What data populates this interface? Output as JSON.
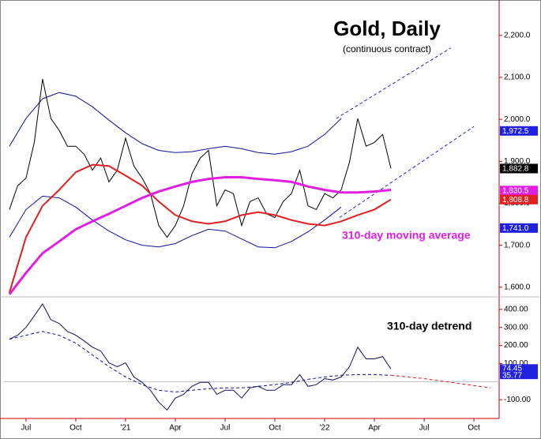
{
  "chart_data": [
    {
      "type": "line",
      "title": "Gold, Daily",
      "subtitle": "(continuous contract)",
      "annotations": [
        {
          "text": "310-day moving average",
          "color": "#e020e0"
        }
      ],
      "x": [
        -1,
        0,
        1,
        2,
        3,
        4,
        5,
        6,
        7,
        8,
        9,
        10,
        11,
        12,
        13,
        14,
        15,
        16,
        17,
        18,
        19,
        20,
        21,
        22
      ],
      "xlim": [
        -1.33,
        28.52
      ],
      "ylim": [
        1577,
        2275
      ],
      "yticks": [
        {
          "value": 1600,
          "label": "1,600.0"
        },
        {
          "value": 1700,
          "label": "1,700.0"
        },
        {
          "value": 1800,
          "label": "1,800.0"
        },
        {
          "value": 1900,
          "label": "1,900.0"
        },
        {
          "value": 2000,
          "label": "2,000.0"
        },
        {
          "value": 2100,
          "label": "2,100.0"
        },
        {
          "value": 2200,
          "label": "2,200.0"
        }
      ],
      "series": [
        {
          "color": "#1010a0",
          "width": 1,
          "values": [
            1936,
            2002,
            2049,
            2064,
            2055,
            2030,
            1998,
            1968,
            1942,
            1926,
            1921,
            1923,
            1930,
            1936,
            1930,
            1921,
            1917,
            1923,
            1936,
            1964,
            2002,
            null,
            null,
            null
          ]
        },
        {
          "color": "#1010a0",
          "width": 1,
          "values": [
            1719,
            1785,
            1817,
            1813,
            1791,
            1760,
            1734,
            1713,
            1700,
            1696,
            1704,
            1723,
            1738,
            1734,
            1715,
            1696,
            1694,
            1709,
            1732,
            1760,
            1791,
            null,
            null,
            null
          ]
        },
        {
          "color": "#2020e0",
          "width": 1,
          "dash": true,
          "x": [
            18.7,
            25.6
          ],
          "values": [
            2002,
            2170
          ]
        },
        {
          "color": "#2020e0",
          "width": 1,
          "dash": true,
          "x": [
            18.9,
            27
          ],
          "values": [
            1766,
            1983
          ]
        },
        {
          "color": "#000000",
          "width": 1,
          "x": [
            -1,
            -0.5,
            0,
            0.5,
            1,
            1.5,
            2,
            2.5,
            3,
            3.5,
            4,
            4.5,
            5,
            5.5,
            6,
            6.5,
            7,
            7.5,
            8,
            8.5,
            9,
            9.5,
            10,
            10.5,
            11,
            11.5,
            12,
            12.5,
            13,
            13.5,
            14,
            14.5,
            15,
            15.5,
            16,
            16.5,
            17,
            17.5,
            18,
            18.5,
            19,
            19.5,
            20,
            20.5,
            21,
            21.5,
            22
          ],
          "values": [
            1785,
            1842,
            1860,
            1945,
            2096,
            2002,
            1974,
            1936,
            1936,
            1917,
            1879,
            1908,
            1851,
            1879,
            1955,
            1889,
            1860,
            1823,
            1747,
            1719,
            1747,
            1794,
            1870,
            1908,
            1926,
            1794,
            1832,
            1823,
            1747,
            1804,
            1813,
            1775,
            1766,
            1804,
            1823,
            1879,
            1794,
            1785,
            1823,
            1813,
            1832,
            1898,
            2002,
            1936,
            1945,
            1964,
            1883
          ]
        },
        {
          "color": "#e02020",
          "width": 2,
          "values": [
            1587,
            1719,
            1794,
            1832,
            1874,
            1892,
            1889,
            1866,
            1842,
            1804,
            1772,
            1757,
            1751,
            1757,
            1772,
            1779,
            1772,
            1760,
            1751,
            1747,
            1757,
            1772,
            1785,
            1809
          ]
        },
        {
          "color": "#e020e0",
          "width": 3,
          "values": [
            1583,
            1634,
            1681,
            1709,
            1738,
            1757,
            1775,
            1794,
            1813,
            1828,
            1840,
            1851,
            1858,
            1862,
            1862,
            1858,
            1855,
            1851,
            1840,
            1832,
            1826,
            1826,
            1828,
            1832
          ]
        }
      ],
      "price_labels": [
        {
          "value": 1972.5,
          "label": "1,972.5",
          "color": "#2020e0"
        },
        {
          "value": 1882.8,
          "label": "1,882.8",
          "color": "#000000"
        },
        {
          "value": 1830.5,
          "label": "1,830.5",
          "color": "#e020e0"
        },
        {
          "value": 1808.8,
          "label": "1,808.8",
          "color": "#e02020"
        },
        {
          "value": 1741.0,
          "label": "1,741.0",
          "color": "#2020e0"
        }
      ]
    },
    {
      "type": "line",
      "annotations": [
        {
          "text": "310-day detrend",
          "color": "#000000"
        }
      ],
      "x": [
        -1,
        0,
        1,
        2,
        3,
        4,
        5,
        6,
        7,
        8,
        9,
        10,
        11,
        12,
        13,
        14,
        15,
        16,
        17,
        18,
        19,
        20,
        21,
        22
      ],
      "xlim": [
        -1.33,
        28.52
      ],
      "xticks": [
        {
          "value": 0,
          "label": "Jul"
        },
        {
          "value": 3,
          "label": "Oct"
        },
        {
          "value": 6,
          "label": "'21"
        },
        {
          "value": 9,
          "label": "Apr"
        },
        {
          "value": 12,
          "label": "Jul"
        },
        {
          "value": 15,
          "label": "Oct"
        },
        {
          "value": 18,
          "label": "'22"
        },
        {
          "value": 21,
          "label": "Apr"
        },
        {
          "value": 24,
          "label": "Jul"
        },
        {
          "value": 27,
          "label": "Oct"
        }
      ],
      "ylim": [
        -204,
        465
      ],
      "yticks": [
        {
          "value": -100,
          "label": "-100.00"
        },
        {
          "value": 100,
          "label": "100.00"
        },
        {
          "value": 200,
          "label": "200.00"
        },
        {
          "value": 300,
          "label": "300.00"
        },
        {
          "value": 400,
          "label": "400.00"
        }
      ],
      "series": [
        {
          "color": "#1010a0",
          "width": 1,
          "dash": true,
          "values": [
            235,
            257,
            278,
            257,
            213,
            148,
            83,
            26,
            -17,
            -48,
            -57,
            -48,
            -39,
            -35,
            -35,
            -26,
            -17,
            -4,
            13,
            26,
            35,
            39,
            39,
            35
          ]
        },
        {
          "color": "#e02020",
          "width": 1,
          "dash": true,
          "x": [
            22,
            24,
            26,
            28
          ],
          "values": [
            35,
            17,
            -9,
            -35
          ]
        },
        {
          "color": "#101060",
          "width": 1,
          "x": [
            -1,
            -0.5,
            0,
            0.5,
            1,
            1.5,
            2,
            2.5,
            3,
            3.5,
            4,
            4.5,
            5,
            5.5,
            6,
            6.5,
            7,
            7.5,
            8,
            8.5,
            9,
            9.5,
            10,
            10.5,
            11,
            11.5,
            12,
            12.5,
            13,
            13.5,
            14,
            14.5,
            15,
            15.5,
            16,
            16.5,
            17,
            17.5,
            18,
            18.5,
            19,
            19.5,
            20,
            20.5,
            21,
            21.5,
            22
          ],
          "values": [
            235,
            257,
            300,
            365,
            430,
            343,
            322,
            278,
            257,
            226,
            191,
            170,
            104,
            83,
            104,
            26,
            -4,
            -48,
            -113,
            -157,
            -91,
            -70,
            -26,
            -4,
            -4,
            -70,
            -48,
            -48,
            -91,
            -35,
            -26,
            -48,
            -48,
            -17,
            -17,
            39,
            -26,
            -17,
            17,
            9,
            26,
            83,
            191,
            126,
            126,
            139,
            70
          ]
        }
      ],
      "price_labels": [
        {
          "value": 74.45,
          "label": "74.45",
          "color": "#2020e0"
        },
        {
          "value": 35.77,
          "label": "35.77",
          "color": "#2020e0"
        }
      ]
    }
  ]
}
